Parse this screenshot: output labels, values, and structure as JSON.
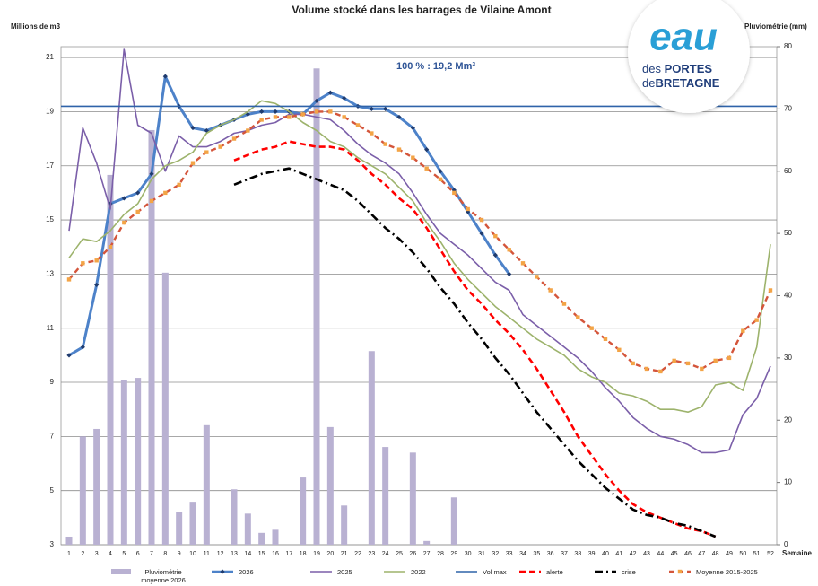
{
  "chart_data": {
    "type": "combo",
    "title": "Volume stocké dans les barrages de Vilaine Amont",
    "y_label": "Millions de m3",
    "y2_label": "Pluviométrie (mm)",
    "x_label": "Semaine",
    "annotation": "100 % : 19,2 Mm³",
    "categories": [
      1,
      2,
      3,
      4,
      5,
      6,
      7,
      8,
      9,
      10,
      11,
      12,
      13,
      14,
      15,
      16,
      17,
      18,
      19,
      20,
      21,
      22,
      23,
      24,
      25,
      26,
      27,
      28,
      29,
      30,
      31,
      32,
      33,
      34,
      35,
      36,
      37,
      38,
      39,
      40,
      41,
      42,
      43,
      44,
      45,
      46,
      47,
      48,
      49,
      50,
      51,
      52
    ],
    "ylim": [
      3,
      21.4
    ],
    "yticks": [
      3,
      5,
      7,
      9,
      11,
      13,
      15,
      17,
      19,
      21
    ],
    "y2lim": [
      0,
      80
    ],
    "y2ticks": [
      0,
      10,
      20,
      30,
      40,
      50,
      60,
      70,
      80
    ],
    "grid": true,
    "legend": "bottom",
    "series": [
      {
        "name": "Pluviométrie moyenne 2026",
        "kind": "bar",
        "axis": "y2",
        "color": "#b9b1d2",
        "values": [
          1.3,
          17.4,
          18.6,
          59.4,
          26.5,
          26.8,
          66.6,
          43.7,
          5.2,
          6.9,
          19.2,
          0,
          8.9,
          5.0,
          1.9,
          2.4,
          0,
          10.8,
          76.5,
          18.9,
          6.3,
          0,
          31.1,
          15.7,
          0,
          14.8,
          0.6,
          0,
          7.6,
          null,
          null,
          null,
          null,
          null,
          null,
          null,
          null,
          null,
          null,
          null,
          null,
          null,
          null,
          null,
          null,
          null,
          null,
          null,
          null,
          null,
          null,
          null
        ]
      },
      {
        "name": "2026",
        "kind": "line",
        "color": "#4d82c9",
        "width": 3,
        "marker": "diamond",
        "marker_color": "#1f3b6e",
        "values": [
          10.0,
          10.3,
          12.6,
          15.6,
          15.8,
          16.0,
          16.7,
          20.3,
          19.2,
          18.4,
          18.3,
          18.5,
          18.7,
          18.9,
          19.0,
          19.0,
          19.0,
          18.9,
          19.4,
          19.7,
          19.5,
          19.2,
          19.1,
          19.1,
          18.8,
          18.4,
          17.6,
          16.8,
          16.1,
          15.3,
          14.5,
          13.7,
          13.0,
          null,
          null,
          null,
          null,
          null,
          null,
          null,
          null,
          null,
          null,
          null,
          null,
          null,
          null,
          null,
          null,
          null,
          null,
          null
        ]
      },
      {
        "name": "2025",
        "kind": "line",
        "color": "#7b5fa9",
        "width": 1.6,
        "values": [
          14.6,
          18.4,
          17.1,
          15.4,
          21.3,
          18.5,
          18.2,
          16.8,
          18.1,
          17.7,
          17.7,
          17.9,
          18.2,
          18.3,
          18.5,
          18.6,
          18.9,
          18.9,
          18.8,
          18.7,
          18.3,
          17.8,
          17.4,
          17.1,
          16.7,
          16.0,
          15.2,
          14.5,
          14.1,
          13.7,
          13.2,
          12.7,
          12.4,
          11.5,
          11.1,
          10.7,
          10.3,
          9.9,
          9.4,
          8.8,
          8.3,
          7.7,
          7.3,
          7.0,
          6.9,
          6.7,
          6.4,
          6.4,
          6.5,
          7.8,
          8.4,
          9.6
        ]
      },
      {
        "name": "2022",
        "kind": "line",
        "color": "#9db36c",
        "width": 1.6,
        "values": [
          13.6,
          14.3,
          14.2,
          14.6,
          15.2,
          15.6,
          16.5,
          17.0,
          17.2,
          17.5,
          18.2,
          18.5,
          18.7,
          19.0,
          19.4,
          19.3,
          19.0,
          18.6,
          18.3,
          17.9,
          17.7,
          17.3,
          17.0,
          16.7,
          16.2,
          15.7,
          14.9,
          14.2,
          13.4,
          12.8,
          12.3,
          11.8,
          11.4,
          11.0,
          10.6,
          10.3,
          10.0,
          9.5,
          9.2,
          9.0,
          8.6,
          8.5,
          8.3,
          8.0,
          8.0,
          7.9,
          8.1,
          8.9,
          9.0,
          8.7,
          10.3,
          14.1
        ]
      },
      {
        "name": "Vol max",
        "kind": "line",
        "color": "#2f63a9",
        "width": 1.6,
        "extend": true,
        "values": [
          19.2,
          19.2,
          19.2,
          19.2,
          19.2,
          19.2,
          19.2,
          19.2,
          19.2,
          19.2,
          19.2,
          19.2,
          19.2,
          19.2,
          19.2,
          19.2,
          19.2,
          19.2,
          19.2,
          19.2,
          19.2,
          19.2,
          19.2,
          19.2,
          19.2,
          19.2,
          19.2,
          19.2,
          19.2,
          19.2,
          19.2,
          19.2,
          19.2,
          19.2,
          19.2,
          19.2,
          19.2,
          19.2,
          19.2,
          19.2,
          19.2,
          19.2,
          19.2,
          19.2,
          19.2,
          19.2,
          19.2,
          19.2,
          19.2,
          19.2,
          19.2,
          19.2
        ]
      },
      {
        "name": "alerte",
        "kind": "line",
        "color": "#ff0000",
        "width": 2.6,
        "dash": "7 4",
        "values": [
          null,
          null,
          null,
          null,
          null,
          null,
          null,
          null,
          null,
          null,
          null,
          null,
          17.2,
          17.4,
          17.6,
          17.7,
          17.9,
          17.8,
          17.7,
          17.7,
          17.6,
          17.2,
          16.7,
          16.3,
          15.8,
          15.4,
          14.7,
          13.9,
          13.1,
          12.4,
          11.9,
          11.3,
          10.8,
          10.2,
          9.5,
          8.7,
          7.9,
          7.0,
          6.3,
          5.6,
          5.0,
          4.5,
          4.2,
          4.0,
          3.8,
          3.6,
          3.5,
          3.3,
          null,
          null,
          null,
          null
        ]
      },
      {
        "name": "crise",
        "kind": "line",
        "color": "#000000",
        "width": 2.6,
        "dash": "9 4 2 4",
        "values": [
          null,
          null,
          null,
          null,
          null,
          null,
          null,
          null,
          null,
          null,
          null,
          null,
          16.3,
          16.5,
          16.7,
          16.8,
          16.9,
          16.7,
          16.5,
          16.3,
          16.1,
          15.7,
          15.2,
          14.7,
          14.3,
          13.8,
          13.2,
          12.5,
          11.9,
          11.2,
          10.6,
          9.9,
          9.3,
          8.6,
          7.9,
          7.3,
          6.7,
          6.1,
          5.6,
          5.1,
          4.7,
          4.3,
          4.1,
          4.0,
          3.8,
          3.7,
          3.5,
          3.3,
          null,
          null,
          null,
          null
        ]
      },
      {
        "name": "Moyenne 2015-2025",
        "kind": "line",
        "color": "#d4553b",
        "width": 2.4,
        "dash": "6 4",
        "marker": "square",
        "marker_color": "#f3a446",
        "values": [
          12.8,
          13.4,
          13.5,
          14.0,
          14.9,
          15.3,
          15.7,
          16.0,
          16.3,
          17.1,
          17.5,
          17.7,
          18.0,
          18.3,
          18.7,
          18.8,
          18.8,
          18.9,
          19.0,
          19.0,
          18.8,
          18.5,
          18.2,
          17.8,
          17.6,
          17.3,
          16.9,
          16.5,
          16.0,
          15.4,
          15.0,
          14.4,
          13.9,
          13.4,
          12.9,
          12.4,
          11.9,
          11.4,
          11.0,
          10.6,
          10.2,
          9.7,
          9.5,
          9.4,
          9.8,
          9.7,
          9.5,
          9.8,
          9.9,
          10.9,
          11.3,
          12.4
        ]
      }
    ]
  },
  "logo": {
    "word": "eau",
    "line1a": "des",
    "line1b": "PORTES",
    "line2a": "de",
    "line2b": "BRETAGNE"
  }
}
